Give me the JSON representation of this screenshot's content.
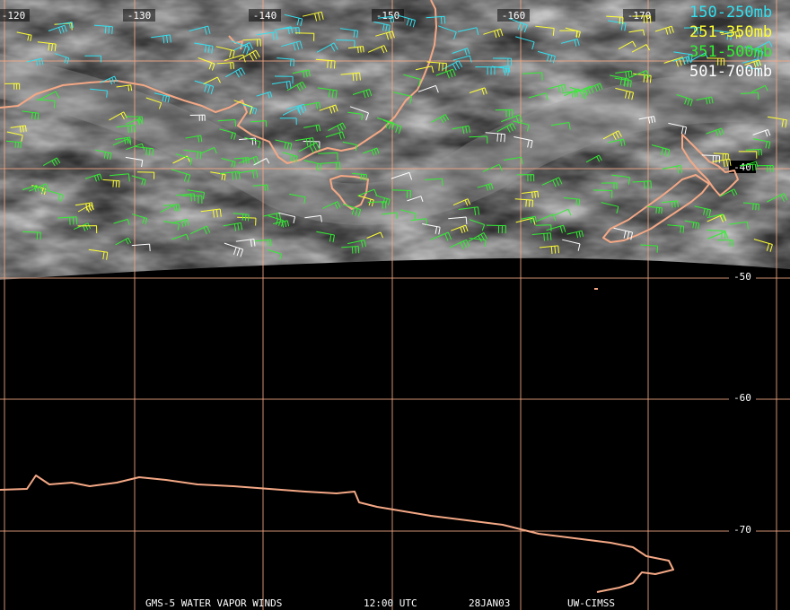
{
  "map": {
    "longitude_labels": [
      "-120",
      "-130",
      "-140",
      "-150",
      "-160",
      "-170"
    ],
    "latitude_labels": [
      "-40",
      "-50",
      "-60",
      "-70"
    ],
    "legend": [
      {
        "label": "150-250mb",
        "color": "#33e0f0"
      },
      {
        "label": "251-350mb",
        "color": "#ffff33"
      },
      {
        "label": "351-500mb",
        "color": "#33ee33"
      },
      {
        "label": "501-700mb",
        "color": "#ffffff"
      }
    ],
    "footer": [
      "GMS-5 WATER VAPOR WINDS",
      "12:00 UTC",
      "28JAN03",
      "UW-CIMSS"
    ]
  }
}
